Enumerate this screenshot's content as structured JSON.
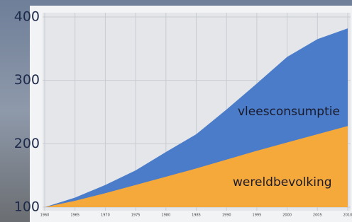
{
  "chart_data": {
    "type": "area",
    "x": [
      1960,
      1965,
      1970,
      1975,
      1980,
      1985,
      1990,
      1995,
      2000,
      2005,
      2010
    ],
    "series": [
      {
        "name": "vleesconsumptie",
        "color": "#4a7cc9",
        "values": [
          100,
          115,
          135,
          158,
          187,
          215,
          254,
          295,
          337,
          365,
          382
        ]
      },
      {
        "name": "wereldbevolking",
        "color": "#f6a93b",
        "values": [
          100,
          110,
          122,
          135,
          148,
          161,
          175,
          189,
          202,
          215,
          228
        ]
      }
    ],
    "xlim": [
      1960,
      2010
    ],
    "xticks": [
      1960,
      1965,
      1970,
      1975,
      1980,
      1985,
      1990,
      1995,
      2000,
      2005,
      2010
    ],
    "ylim": [
      100,
      400
    ],
    "yticks": [
      100,
      200,
      300,
      400
    ],
    "grid": true
  }
}
